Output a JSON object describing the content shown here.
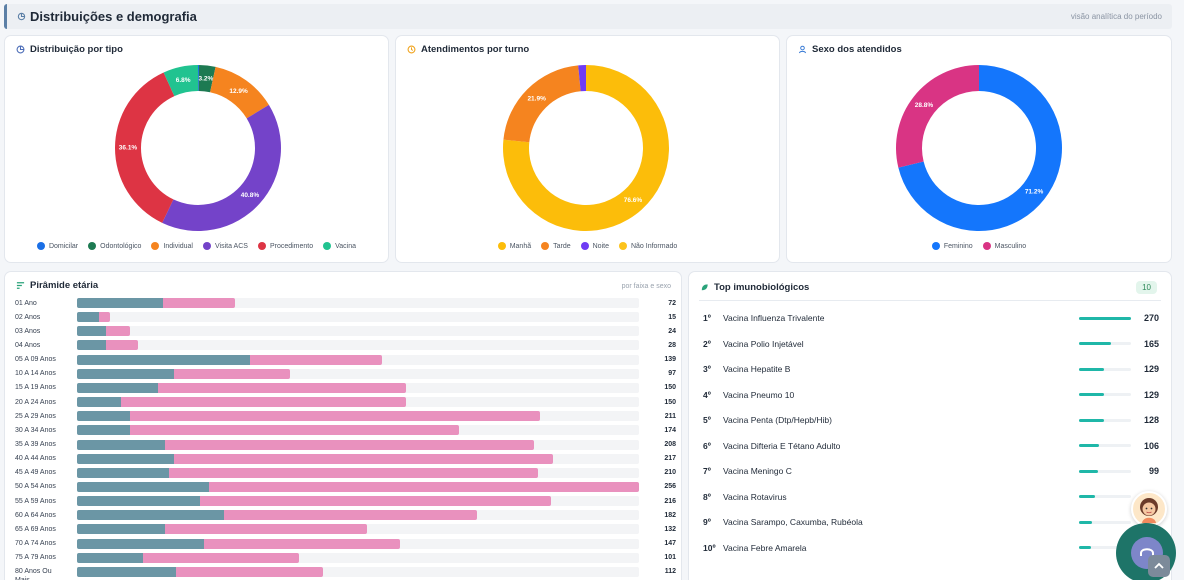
{
  "section": {
    "title": "Distribuições e demografia",
    "hint": "visão analítica do período"
  },
  "colors": {
    "teal": "#1fb7a8",
    "male": "#6b96a5",
    "female": "#e991be"
  },
  "cards": {
    "tipo": {
      "title": "Distribuição por tipo",
      "icon": "pie-chart-icon",
      "chart_data": {
        "type": "pie",
        "categories": [
          "Domicilar",
          "Odontológico",
          "Individual",
          "Visita ACS",
          "Procedimento",
          "Vacina"
        ],
        "values": [
          0.2,
          3.2,
          12.9,
          40.8,
          36.1,
          6.8
        ],
        "labels": [
          "",
          "3.2%",
          "12.9%",
          "40.8%",
          "36.1%",
          "6.8%"
        ],
        "colors": [
          "#1a6fe6",
          "#1d7a52",
          "#f5841f",
          "#7443c9",
          "#dd3444",
          "#21c390"
        ]
      }
    },
    "turno": {
      "title": "Atendimentos por turno",
      "icon": "clock-icon",
      "chart_data": {
        "type": "pie",
        "categories": [
          "Manhã",
          "Tarde",
          "Noite",
          "Não Informado"
        ],
        "values": [
          76.6,
          21.9,
          1.5,
          0.0
        ],
        "labels": [
          "76.6%",
          "21.9%",
          "",
          ""
        ],
        "colors": [
          "#fcbd0a",
          "#f5841f",
          "#6f3cf4",
          "#fcc31c"
        ]
      }
    },
    "sexo": {
      "title": "Sexo dos atendidos",
      "icon": "user-icon",
      "chart_data": {
        "type": "pie",
        "categories": [
          "Feminino",
          "Masculino"
        ],
        "values": [
          71.2,
          28.8
        ],
        "labels": [
          "71.2%",
          "28.8%"
        ],
        "colors": [
          "#1476fc",
          "#d93484"
        ]
      }
    }
  },
  "pyramid": {
    "title": "Pirâmide etária",
    "hint": "por faixa e sexo",
    "icon": "bars-icon",
    "max": 256,
    "chart_data": {
      "type": "bar",
      "categories": [
        "01 Ano",
        "02 Anos",
        "03 Anos",
        "04 Anos",
        "05 A 09 Anos",
        "10 A 14 Anos",
        "15 A 19 Anos",
        "20 A 24 Anos",
        "25 A 29 Anos",
        "30 A 34 Anos",
        "35 A 39 Anos",
        "40 A 44 Anos",
        "45 A 49 Anos",
        "50 A 54 Anos",
        "55 A 59 Anos",
        "60 A 64 Anos",
        "65 A 69 Anos",
        "70 A 74 Anos",
        "75 A 79 Anos",
        "80 Anos Ou Mais"
      ],
      "totals": [
        72,
        15,
        24,
        28,
        139,
        97,
        150,
        150,
        211,
        174,
        208,
        217,
        210,
        256,
        216,
        182,
        132,
        147,
        101,
        112
      ],
      "series": [
        {
          "values": [
            39,
            10,
            13,
            13,
            79,
            44,
            37,
            20,
            24,
            24,
            40,
            44,
            42,
            60,
            56,
            67,
            40,
            58,
            30,
            45
          ]
        },
        {
          "values": [
            33,
            5,
            11,
            15,
            60,
            53,
            113,
            130,
            187,
            150,
            168,
            173,
            168,
            196,
            160,
            115,
            92,
            89,
            71,
            67
          ]
        }
      ]
    }
  },
  "imuno": {
    "title": "Top imunobiológicos",
    "icon": "leaf-icon",
    "badge": "10",
    "max": 270,
    "items": [
      {
        "rank": "1º",
        "name": "Vacina Influenza Trivalente",
        "value": 270
      },
      {
        "rank": "2º",
        "name": "Vacina Polio Injetável",
        "value": 165
      },
      {
        "rank": "3º",
        "name": "Vacina Hepatite B",
        "value": 129
      },
      {
        "rank": "4º",
        "name": "Vacina Pneumo 10",
        "value": 129
      },
      {
        "rank": "5º",
        "name": "Vacina Penta (Dtp/Hepb/Hib)",
        "value": 128
      },
      {
        "rank": "6º",
        "name": "Vacina Difteria E Tétano Adulto",
        "value": 106
      },
      {
        "rank": "7º",
        "name": "Vacina Meningo C",
        "value": 99
      },
      {
        "rank": "8º",
        "name": "Vacina Rotavirus",
        "value": 82
      },
      {
        "rank": "9º",
        "name": "Vacina Sarampo, Caxumba, Rubéola",
        "value": 66
      },
      {
        "rank": "10º",
        "name": "Vacina Febre Amarela",
        "value": 61
      }
    ]
  }
}
